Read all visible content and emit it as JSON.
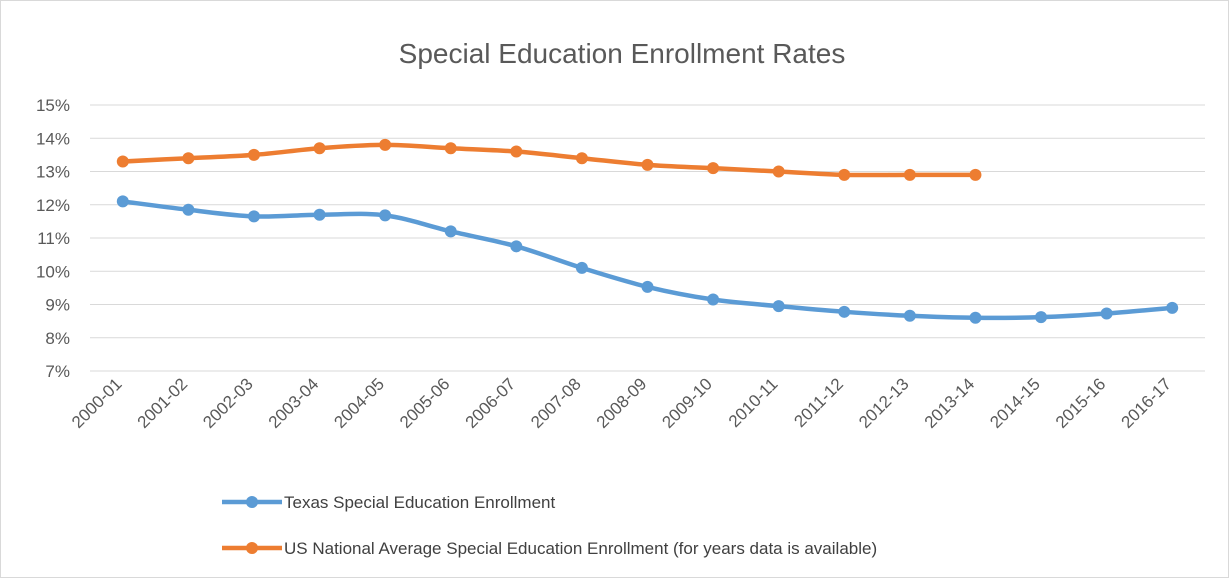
{
  "chart_data": {
    "type": "line",
    "title": "Special Education Enrollment Rates",
    "categories": [
      "2000-01",
      "2001-02",
      "2002-03",
      "2003-04",
      "2004-05",
      "2005-06",
      "2006-07",
      "2007-08",
      "2008-09",
      "2009-10",
      "2010-11",
      "2011-12",
      "2012-13",
      "2013-14",
      "2014-15",
      "2015-16",
      "2016-17"
    ],
    "y_tick_labels": [
      "7%",
      "8%",
      "9%",
      "10%",
      "11%",
      "12%",
      "13%",
      "14%",
      "15%"
    ],
    "ylim": [
      7,
      15
    ],
    "grid": true,
    "legend_position": "bottom",
    "series": [
      {
        "name": "Texas Special Education Enrollment",
        "color": "#5b9bd5",
        "values": [
          12.1,
          11.85,
          11.65,
          11.7,
          11.68,
          11.2,
          10.75,
          10.1,
          9.53,
          9.15,
          8.95,
          8.78,
          8.66,
          8.6,
          8.62,
          8.73,
          8.9
        ]
      },
      {
        "name": "US National Average Special Education Enrollment (for years data is available)",
        "color": "#ed7d31",
        "values": [
          13.3,
          13.4,
          13.5,
          13.7,
          13.8,
          13.7,
          13.6,
          13.4,
          13.2,
          13.1,
          13.0,
          12.9,
          12.9,
          12.9,
          null,
          null,
          null
        ]
      }
    ]
  }
}
